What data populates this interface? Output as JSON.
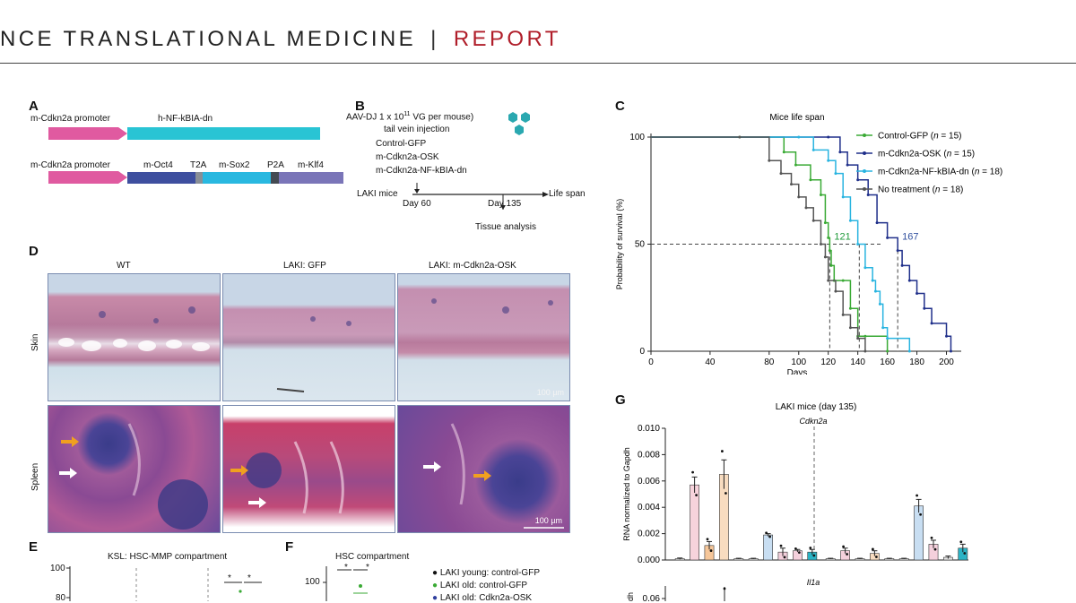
{
  "header": {
    "journal": "NCE TRANSLATIONAL MEDICINE",
    "separator": "|",
    "section": "REPORT"
  },
  "panel_labels": {
    "a": "A",
    "b": "B",
    "c": "C",
    "d": "D",
    "e": "E",
    "f": "F",
    "g": "G"
  },
  "panel_a": {
    "construct1": {
      "promoter": "m-Cdkn2a promoter",
      "gene": "h-NF-kBIA-dn"
    },
    "construct2": {
      "promoter": "m-Cdkn2a promoter",
      "oct4": "m-Oct4",
      "t2a": "T2A",
      "sox2": "m-Sox2",
      "p2a": "P2A",
      "klf4": "m-Klf4"
    },
    "colors": {
      "promoter": "#e05aa0",
      "nfkbia": "#29c4d4",
      "oct4": "#3e4f9f",
      "sox2": "#29b8e0",
      "klf4": "#7a75b8",
      "linker": "#8a8f96"
    }
  },
  "panel_b": {
    "dose_line": "AAV-DJ 1 x 10",
    "dose_exp": "11",
    "dose_unit": " VG per mouse)",
    "route": "tail vein injection",
    "groups": [
      "Control-GFP",
      "m-Cdkn2a-OSK",
      "m-Cdkn2a-NF-kBIA-dn"
    ],
    "mice": "LAKI mice",
    "lifespan": "Life span",
    "day60": "Day 60",
    "day135": "Day 135",
    "analysis": "Tissue analysis"
  },
  "chart_data": [
    {
      "type": "line",
      "title": "Mice life span",
      "xlabel": "Days",
      "ylabel": "Probability of survival (%)",
      "xlim": [
        0,
        210
      ],
      "ylim": [
        0,
        100
      ],
      "xticks": [
        "0",
        "40",
        "80",
        "100",
        "120",
        "140",
        "160",
        "180",
        "200"
      ],
      "yticks": [
        "0",
        "50",
        "100"
      ],
      "medians": [
        {
          "value": 121,
          "label": "121",
          "color": "#1f9a3a"
        },
        {
          "value": 167,
          "label": "167",
          "color": "#2f4f9e"
        }
      ],
      "series": [
        {
          "name": "Control-GFP",
          "n": "n",
          "count": " = 15)",
          "color": "#3aaa35",
          "x": [
            0,
            60,
            90,
            98,
            108,
            115,
            118,
            120,
            121,
            122,
            124,
            130,
            135,
            140,
            145,
            160
          ],
          "y": [
            100,
            100,
            93,
            87,
            80,
            73,
            60,
            53,
            47,
            40,
            33,
            33,
            20,
            7,
            7,
            0
          ]
        },
        {
          "name": "m-Cdkn2a-OSK",
          "n": "n",
          "count": " = 15)",
          "color": "#1f2f8a",
          "x": [
            0,
            120,
            128,
            133,
            140,
            147,
            153,
            160,
            167,
            170,
            175,
            180,
            185,
            190,
            200,
            203
          ],
          "y": [
            100,
            100,
            93,
            87,
            80,
            73,
            60,
            53,
            47,
            40,
            33,
            27,
            20,
            13,
            7,
            0
          ]
        },
        {
          "name": "m-Cdkn2a-NF-kBIA-dn",
          "n": "n",
          "count": " = 18)",
          "color": "#29b4e0",
          "x": [
            0,
            100,
            110,
            120,
            125,
            130,
            135,
            140,
            145,
            150,
            152,
            155,
            157,
            160,
            175
          ],
          "y": [
            100,
            100,
            94,
            89,
            83,
            72,
            61,
            50,
            39,
            33,
            28,
            22,
            11,
            6,
            0
          ]
        },
        {
          "name": "No treatment",
          "n": "n",
          "count": " = 18)",
          "color": "#555555",
          "x": [
            0,
            60,
            80,
            88,
            95,
            100,
            105,
            110,
            115,
            118,
            120,
            125,
            130,
            135,
            140,
            145
          ],
          "y": [
            100,
            100,
            89,
            83,
            78,
            72,
            67,
            61,
            50,
            44,
            33,
            28,
            17,
            11,
            6,
            0
          ]
        }
      ]
    },
    {
      "type": "bar",
      "title": "LAKI mice (day 135)",
      "subplot_label": "Cdkn2a",
      "ylabel": "RNA normalized to Gapdh",
      "ylim": [
        0,
        0.01
      ],
      "yticks": [
        "0.000",
        "0.002",
        "0.004",
        "0.006",
        "0.008",
        "0.010"
      ],
      "bar_colors": [
        "#e8e8e8",
        "#f7d3dc",
        "#f6c79a",
        "#f8dcc0",
        "#c8def2",
        "#f4d0dc",
        "#e0e0e0",
        "#2bb3c5"
      ],
      "values": [
        0.0001,
        0.0057,
        0.0011,
        0.0065,
        0.0001,
        0.0001,
        0.0019,
        0.0006,
        0.0007,
        0.0006,
        0.0001,
        0.0007,
        0.0001,
        0.0005,
        0.0001,
        0.0001,
        0.0041,
        0.0012,
        0.0002,
        0.0009
      ],
      "colors": [
        0,
        1,
        2,
        3,
        0,
        0,
        4,
        5,
        5,
        7,
        0,
        5,
        0,
        3,
        0,
        0,
        4,
        5,
        0,
        7
      ],
      "errors": [
        5e-05,
        0.0006,
        0.0003,
        0.0011,
        3e-05,
        3e-05,
        0.0001,
        0.0003,
        0.0001,
        0.0002,
        3e-05,
        0.0002,
        3e-05,
        0.0002,
        3e-05,
        3e-05,
        0.0005,
        0.0003,
        0.0001,
        0.0003
      ],
      "second_subplot": {
        "label": "Il1a",
        "ylabel": "dh",
        "ytick": "0.06"
      }
    }
  ],
  "panel_d": {
    "columns": [
      "WT",
      "LAKI: GFP",
      "LAKI: m-Cdkn2a-OSK"
    ],
    "rows": [
      "Skin",
      "Spleen"
    ],
    "scale_skin": "100 µm",
    "scale_spleen": "100 µm"
  },
  "panel_e": {
    "title": "KSL: HSC-MMP compartment",
    "yticks": [
      "100",
      "80"
    ],
    "sig": [
      "*",
      "*"
    ]
  },
  "panel_f": {
    "title": "HSC compartment",
    "ytick": "100",
    "sig": [
      "*",
      "*"
    ],
    "legend": [
      {
        "label": "LAKI young: control-GFP",
        "color": "#111111"
      },
      {
        "label": "LAKI old: control-GFP",
        "color": "#3aaa35"
      },
      {
        "label": "LAKI old: Cdkn2a-OSK",
        "color": "#2f3f9e"
      }
    ]
  }
}
